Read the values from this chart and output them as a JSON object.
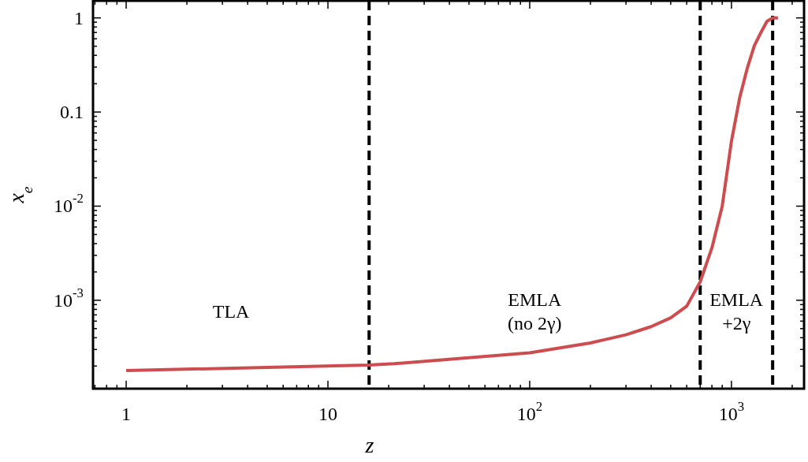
{
  "chart_data": {
    "type": "line",
    "xlabel": "z",
    "ylabel": "x$_{e}$",
    "log": "xy",
    "grid": false,
    "marker": "none",
    "line_style": "solid",
    "xlim": [
      0.685,
      2290
    ],
    "ylim": [
      0.000115,
      1.52
    ],
    "xticks": [
      1,
      10,
      {
        "value": 100,
        "label": "10$^{2}$"
      },
      {
        "value": 1000,
        "label": "10$^{3}$"
      }
    ],
    "yticks": [
      {
        "value": 0.001,
        "label": "10$^{-3}$"
      },
      {
        "value": 0.01,
        "label": "10$^{-2}$"
      },
      0.1,
      1
    ],
    "series": [
      {
        "color": "#cc4c4f",
        "x": [
          1,
          16,
          21.3,
          100,
          200,
          300,
          400,
          500,
          600,
          700,
          800,
          900,
          1000,
          1100,
          1200,
          1300,
          1400,
          1500,
          1600,
          1700
        ],
        "values": [
          0.000179,
          0.000205,
          0.000212,
          0.000277,
          0.000352,
          0.00043,
          0.000525,
          0.00065,
          0.000865,
          0.00157,
          0.0036,
          0.01,
          0.049,
          0.144,
          0.296,
          0.51,
          0.7,
          0.92,
          1.0,
          1.0
        ]
      }
    ],
    "ref_lines": [
      {
        "axis": "x",
        "value": 16,
        "color": "#000000",
        "line_style": "dashed"
      },
      {
        "axis": "x",
        "value": 700,
        "color": "#000000",
        "line_style": "dashed"
      },
      {
        "axis": "x",
        "value": 1600,
        "color": "#000000",
        "line_style": "dashed"
      }
    ],
    "annotations": [
      "TLA",
      "EMLA\n(no 2γ)",
      "EMLA\n+2γ"
    ]
  }
}
